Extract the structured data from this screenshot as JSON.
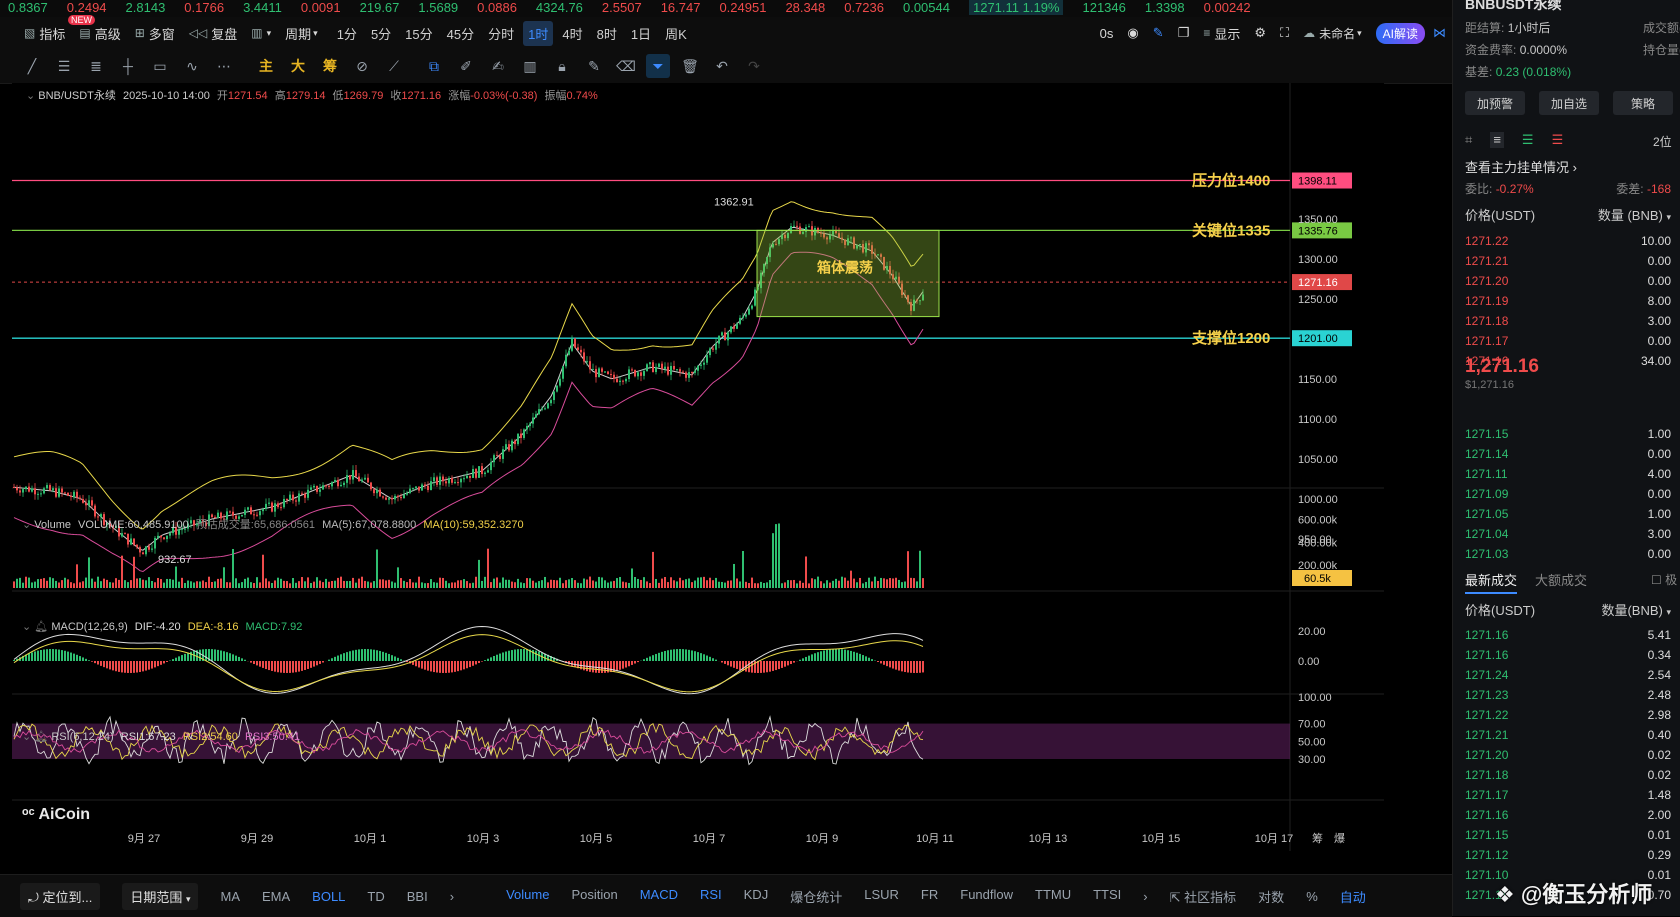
{
  "ticker": [
    {
      "t": "0.8367",
      "c": "grn"
    },
    {
      "t": "0.2494",
      "c": "red"
    },
    {
      "t": "2.8143",
      "c": "grn"
    },
    {
      "t": "0.1766",
      "c": "red"
    },
    {
      "t": "3.4411",
      "c": "grn"
    },
    {
      "t": "0.0091",
      "c": "red"
    },
    {
      "t": "219.67",
      "c": "grn"
    },
    {
      "t": "1.5689",
      "c": "grn"
    },
    {
      "t": "0.0886",
      "c": "red"
    },
    {
      "t": "4324.76",
      "c": "grn"
    },
    {
      "t": "2.5507",
      "c": "red"
    },
    {
      "t": "16.747",
      "c": "red"
    },
    {
      "t": "0.24951",
      "c": "red"
    },
    {
      "t": "28.348",
      "c": "red"
    },
    {
      "t": "0.7236",
      "c": "red"
    },
    {
      "t": "0.00544",
      "c": "grn"
    },
    {
      "t": "1271.11 1.19%",
      "c": "hl"
    },
    {
      "t": "121346",
      "c": "grn"
    },
    {
      "t": "1.3398",
      "c": "grn"
    },
    {
      "t": "0.00242",
      "c": "red"
    }
  ],
  "toolbar": {
    "indicator": "指标",
    "new_badge": "NEW",
    "advanced": "高级",
    "multi": "多窗",
    "replay": "复盘",
    "period": "周期",
    "timeframes": [
      "1分",
      "5分",
      "15分",
      "45分",
      "分时",
      "1时",
      "4时",
      "8时",
      "1日",
      "周K"
    ],
    "active_timeframe": "1时",
    "countdown": "0s",
    "display": "显示",
    "unnamed": "未命名",
    "ai": "AI解读"
  },
  "drawtools": {
    "main": "主",
    "big": "大",
    "chips": "筹"
  },
  "chart": {
    "header": {
      "symbol": "BNB/USDT永续",
      "datetime": "2025-10-10 14:00",
      "open_l": "开",
      "open": "1271.54",
      "high_l": "高",
      "high": "1279.14",
      "low_l": "低",
      "low": "1269.79",
      "close_l": "收",
      "close": "1271.16",
      "chg_l": "涨幅",
      "chg": "-0.03%(-0.38)",
      "amp_l": "振幅",
      "amp": "0.74%"
    },
    "levels": [
      {
        "price": 1398.11,
        "label": "压力位1400",
        "tag": "1398.11",
        "color": "#ff4d80"
      },
      {
        "price": 1335.76,
        "label": "关键位1335",
        "tag": "1335.76",
        "color": "#79c943"
      },
      {
        "price": 1201.0,
        "label": "支撑位1200",
        "tag": "1201.00",
        "color": "#2ad3d3"
      }
    ],
    "current": {
      "price": 1271.16,
      "tag": "1271.16"
    },
    "box_label": "箱体震荡",
    "high_mark": "1362.91",
    "low_mark": "932.67",
    "price_axis": [
      "1350.00",
      "1300.00",
      "1250.00",
      "1150.00",
      "1100.00",
      "1050.00",
      "1000.00",
      "950.00"
    ],
    "time_axis": [
      "9月 27",
      "9月 29",
      "10月 1",
      "10月 3",
      "10月 5",
      "10月 7",
      "10月 9",
      "10月 11",
      "10月 13",
      "10月 15",
      "10月 17"
    ],
    "volume": {
      "title": "Volume",
      "vol": "VOLUME:60,485.9100",
      "est": "预估成交量:65,686.0561",
      "ma5": "MA(5):67,078.8800",
      "ma10": "MA(10):59,352.3270",
      "axis": [
        "600.00k",
        "400.00k",
        "200.00k"
      ],
      "tag": "60.5k"
    },
    "macd": {
      "title": "MACD(12,26,9)",
      "dif": "DIF:-4.20",
      "dea": "DEA:-8.16",
      "macd": "MACD:7.92",
      "axis": [
        "20.00",
        "0.00"
      ]
    },
    "rsi": {
      "title": "RSI(6,12,24)",
      "r1": "RSI1:67.23",
      "r2": "RSI2:54.60",
      "r3": "RSI3:50.41",
      "axis": [
        "100.00",
        "70.00",
        "50.00",
        "30.00"
      ]
    },
    "logo": "AiCoin",
    "corner_labels": [
      "筹",
      "爆"
    ]
  },
  "bottom": {
    "locate": "定位到...",
    "range": "日期范围",
    "items": [
      "MA",
      "EMA",
      "BOLL",
      "TD",
      "BBI"
    ],
    "items2": [
      "Volume",
      "Position",
      "MACD",
      "RSI",
      "KDJ",
      "爆仓统计",
      "LSUR",
      "FR",
      "Fundflow",
      "TTMU",
      "TTSI"
    ],
    "active": [
      "BOLL",
      "Volume",
      "MACD",
      "RSI"
    ],
    "community": "社区指标",
    "log": "对数",
    "pct": "%",
    "auto": "自动"
  },
  "sidebar": {
    "title": "BNBUSDT永续",
    "settle_l": "距结算:",
    "settle": "1小时后",
    "vol_l": "成交额(",
    "fund_l": "资金费率:",
    "fund": "0.0000%",
    "oi_l": "持仓量(",
    "basis_l": "基差:",
    "basis": "0.23 (0.018%)",
    "btn_alert": "加预警",
    "btn_watch": "加自选",
    "btn_strategy": "策略",
    "depth_label": "2位",
    "main_orders": "查看主力挂单情况",
    "ratio_l": "委比:",
    "ratio": "-0.27%",
    "diff_l": "委差:",
    "diff": "-168",
    "price_h": "价格(USDT)",
    "qty_h": "数量 (BNB)",
    "asks": [
      [
        "1271.22",
        "10.00"
      ],
      [
        "1271.21",
        "0.00"
      ],
      [
        "1271.20",
        "0.00"
      ],
      [
        "1271.19",
        "8.00"
      ],
      [
        "1271.18",
        "3.00"
      ],
      [
        "1271.17",
        "0.00"
      ],
      [
        "1271.16",
        "34.00"
      ]
    ],
    "last_price": "1,271.16",
    "last_usd": "$1,271.16",
    "bids": [
      [
        "1271.15",
        "1.00"
      ],
      [
        "1271.14",
        "0.00"
      ],
      [
        "1271.11",
        "4.00"
      ],
      [
        "1271.09",
        "0.00"
      ],
      [
        "1271.05",
        "1.00"
      ],
      [
        "1271.04",
        "3.00"
      ],
      [
        "1271.03",
        "0.00"
      ]
    ],
    "trades_tab": "最新成交",
    "big_tab": "大额成交",
    "pole": "极",
    "trade_price_h": "价格(USDT)",
    "trade_qty_h": "数量(BNB)",
    "trades": [
      [
        "1271.16",
        "5.41"
      ],
      [
        "1271.16",
        "0.34"
      ],
      [
        "1271.24",
        "2.54"
      ],
      [
        "1271.23",
        "2.48"
      ],
      [
        "1271.22",
        "2.98"
      ],
      [
        "1271.21",
        "0.40"
      ],
      [
        "1271.20",
        "0.02"
      ],
      [
        "1271.18",
        "0.02"
      ],
      [
        "1271.17",
        "1.48"
      ],
      [
        "1271.16",
        "2.00"
      ],
      [
        "1271.15",
        "0.01"
      ],
      [
        "1271.12",
        "0.29"
      ],
      [
        "1271.10",
        "0.01"
      ],
      [
        "1271.11",
        "0.70"
      ]
    ],
    "watermark": "@衡玉分析师"
  }
}
